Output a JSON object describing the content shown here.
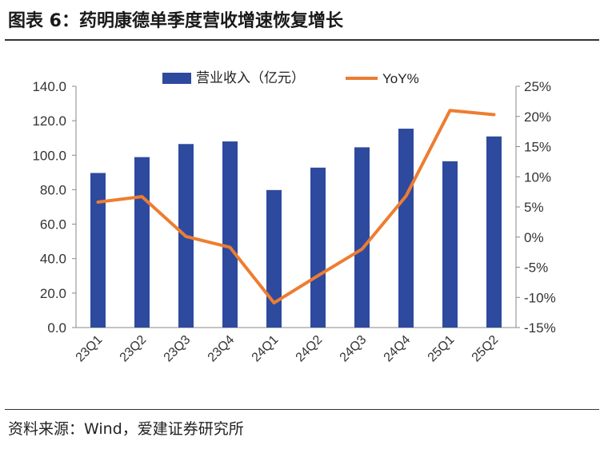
{
  "header": {
    "title": "图表 6：药明康德单季度营收增速恢复增长"
  },
  "footer": {
    "source": "资料来源：Wind，爱建证券研究所"
  },
  "colors": {
    "bar": "#2e4a9e",
    "line": "#ed7d31"
  },
  "chart_data": {
    "type": "bar",
    "title": "",
    "categories": [
      "23Q1",
      "23Q2",
      "23Q3",
      "23Q4",
      "24Q1",
      "24Q2",
      "24Q3",
      "24Q4",
      "25Q1",
      "25Q2"
    ],
    "series": [
      {
        "name": "营业收入（亿元）",
        "type": "bar",
        "axis": "left",
        "values": [
          89.7,
          98.9,
          106.5,
          108.0,
          79.8,
          92.8,
          104.6,
          115.4,
          96.5,
          110.9
        ]
      },
      {
        "name": "YoY%",
        "type": "line",
        "axis": "right",
        "values": [
          5.8,
          6.7,
          0.1,
          -1.7,
          -10.9,
          -6.4,
          -2.0,
          6.8,
          21.0,
          20.3
        ]
      }
    ],
    "y_left": {
      "lim": [
        0,
        140
      ],
      "ticks": [
        0,
        20,
        40,
        60,
        80,
        100,
        120,
        140
      ],
      "tick_labels": [
        "0.0",
        "20.0",
        "40.0",
        "60.0",
        "80.0",
        "100.0",
        "120.0",
        "140.0"
      ]
    },
    "y_right": {
      "lim": [
        -15,
        25
      ],
      "ticks": [
        -15,
        -10,
        -5,
        0,
        5,
        10,
        15,
        20,
        25
      ],
      "tick_labels": [
        "-15%",
        "-10%",
        "-5%",
        "0%",
        "5%",
        "10%",
        "15%",
        "20%",
        "25%"
      ]
    },
    "legend": {
      "placement": "top-center",
      "entries": [
        "营业收入（亿元）",
        "YoY%"
      ]
    },
    "grid": false
  }
}
